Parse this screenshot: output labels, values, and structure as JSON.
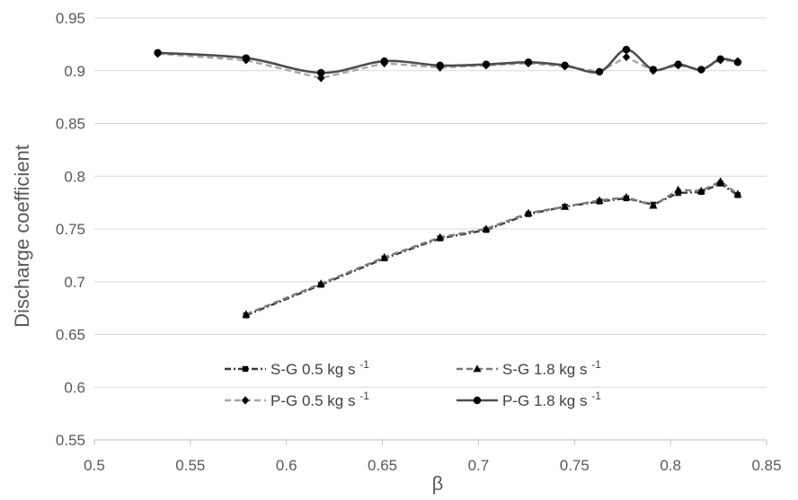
{
  "chart_data": {
    "type": "line",
    "title": "",
    "xlabel": "β",
    "ylabel": "Discharge coefficient",
    "xlim": [
      0.5,
      0.85
    ],
    "ylim": [
      0.55,
      0.95
    ],
    "x_ticks": [
      "0.5",
      "0.55",
      "0.6",
      "0.65",
      "0.7",
      "0.75",
      "0.8",
      "0.85"
    ],
    "y_ticks": [
      "0.55",
      "0.6",
      "0.65",
      "0.7",
      "0.75",
      "0.8",
      "0.85",
      "0.9",
      "0.95"
    ],
    "grid": "horizontal",
    "legend_position": "bottom-center",
    "series": [
      {
        "name": "S-G 0.5 kg s",
        "name_sup": "-1",
        "color": "#3a3a3a",
        "line_style": "dash-dot",
        "marker": "square",
        "smooth": false,
        "x": [
          0.579,
          0.618,
          0.651,
          0.68,
          0.704,
          0.726,
          0.745,
          0.763,
          0.777,
          0.791,
          0.804,
          0.816,
          0.826,
          0.835
        ],
        "y": [
          0.668,
          0.697,
          0.722,
          0.741,
          0.749,
          0.764,
          0.771,
          0.776,
          0.779,
          0.773,
          0.784,
          0.785,
          0.793,
          0.782
        ]
      },
      {
        "name": "S-G 1.8 kg s",
        "name_sup": "-1",
        "color": "#7a7a7a",
        "line_style": "dashed",
        "marker": "triangle",
        "smooth": false,
        "x": [
          0.579,
          0.618,
          0.651,
          0.68,
          0.704,
          0.726,
          0.745,
          0.763,
          0.777,
          0.791,
          0.804,
          0.816,
          0.826,
          0.835
        ],
        "y": [
          0.669,
          0.698,
          0.723,
          0.742,
          0.75,
          0.765,
          0.771,
          0.777,
          0.78,
          0.772,
          0.787,
          0.786,
          0.795,
          0.783
        ]
      },
      {
        "name": "P-G 0.5 kg s",
        "name_sup": "-1",
        "color": "#a6a6a6",
        "line_style": "dashed",
        "marker": "diamond",
        "smooth": false,
        "x": [
          0.533,
          0.579,
          0.618,
          0.651,
          0.68,
          0.704,
          0.726,
          0.745,
          0.763,
          0.777,
          0.791,
          0.804,
          0.816,
          0.826,
          0.835
        ],
        "y": [
          0.916,
          0.91,
          0.893,
          0.907,
          0.903,
          0.905,
          0.907,
          0.904,
          0.899,
          0.913,
          0.9,
          0.905,
          0.901,
          0.91,
          0.909
        ]
      },
      {
        "name": "P-G 1.8 kg s",
        "name_sup": "-1",
        "color": "#4d4d4d",
        "line_style": "solid",
        "marker": "circle",
        "smooth": true,
        "x": [
          0.533,
          0.579,
          0.618,
          0.651,
          0.68,
          0.704,
          0.726,
          0.745,
          0.763,
          0.777,
          0.791,
          0.804,
          0.816,
          0.826,
          0.835
        ],
        "y": [
          0.917,
          0.912,
          0.898,
          0.909,
          0.905,
          0.906,
          0.908,
          0.905,
          0.899,
          0.92,
          0.901,
          0.906,
          0.901,
          0.911,
          0.908
        ]
      }
    ]
  }
}
